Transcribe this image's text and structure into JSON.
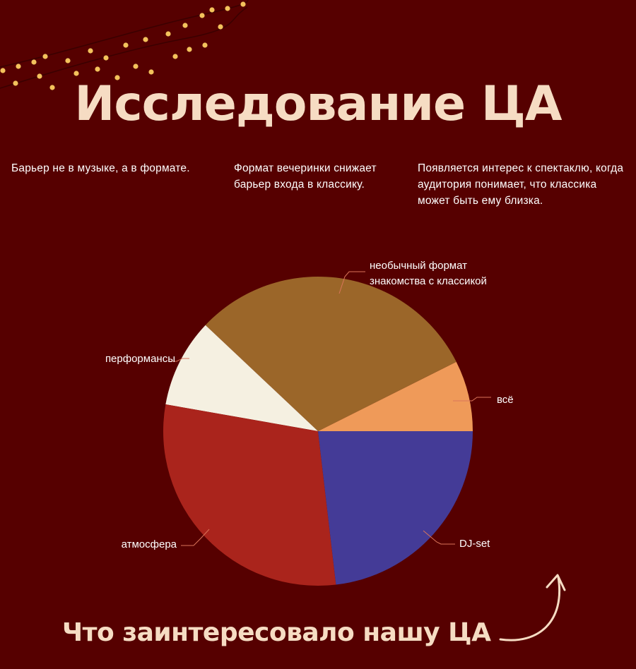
{
  "title": "Исследование ЦА",
  "captions": [
    "Барьер не в музыке, а в формате.",
    "Формат вечеринки снижает барьер входа в классику.",
    "Появляется интерес к спектаклю, когда аудитория понимает, что классика может быть ему близка."
  ],
  "subtitle": "Что заинтересовало нашу ЦА",
  "colors": {
    "background": "#560000",
    "title": "#f6dcc3",
    "text": "#ffffff",
    "leader_line": "#d9755a",
    "garland_bulb": "#f3c25c"
  },
  "chart_data": {
    "type": "pie",
    "title": "",
    "unit": "%",
    "slices": [
      {
        "label": "всё",
        "value": 8,
        "color": "#ef9a59"
      },
      {
        "label": "необычный формат знакомства с классикой",
        "value": 33,
        "color": "#9b6629"
      },
      {
        "label": "перформансы",
        "value": 10,
        "color": "#f5f0e1"
      },
      {
        "label": "атмосфера",
        "value": 32,
        "color": "#aa241c"
      },
      {
        "label": "DJ-set",
        "value": 25,
        "color": "#443b97"
      }
    ]
  },
  "icons": [
    "garland-lights",
    "curved-arrow-icon"
  ]
}
